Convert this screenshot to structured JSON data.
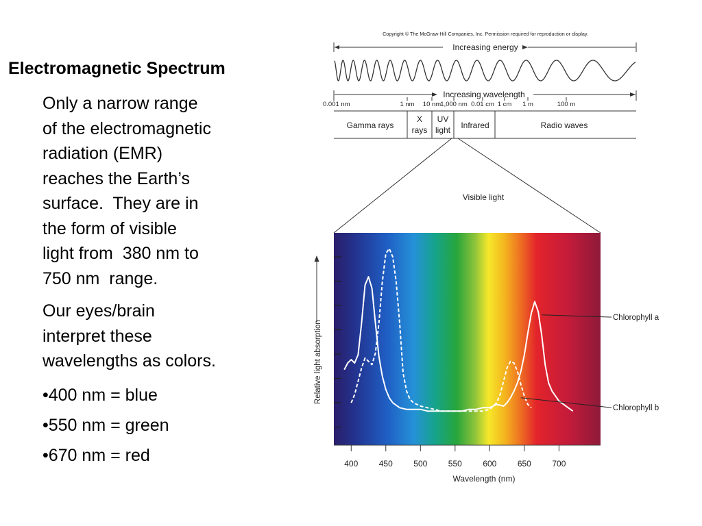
{
  "slide": {
    "title": "Electromagnetic Spectrum",
    "paragraph1_lines": [
      "Only a narrow range",
      "of the electromagnetic",
      "radiation (EMR)",
      "reaches the Earth’s",
      "surface.  They are in",
      "the form of visible",
      "light from  380 nm to",
      "750 nm  range."
    ],
    "paragraph2_lines": [
      "Our eyes/brain",
      "interpret these",
      "wavelengths as colors."
    ],
    "bullets": [
      "•400 nm = blue",
      "•550 nm = green",
      "•670 nm = red"
    ]
  },
  "spectrum_diagram": {
    "copyright": "Copyright © The McGraw-Hill Companies, Inc. Permission required for reproduction or display.",
    "energy_label": "Increasing energy",
    "wavelength_label": "Increasing wavelength",
    "scale_ticks": [
      "0.001 nm",
      "1 nm",
      "10 nm",
      "1,000 nm",
      "0.01 cm",
      "1 cm",
      "1 m",
      "100 m"
    ],
    "regions": [
      {
        "lines": [
          "Gamma rays"
        ]
      },
      {
        "lines": [
          "X",
          "rays"
        ]
      },
      {
        "lines": [
          "UV",
          "light"
        ]
      },
      {
        "lines": [
          "Infrared"
        ]
      },
      {
        "lines": [
          "Radio waves"
        ]
      }
    ],
    "visible_label": "Visible light"
  },
  "chart_data": {
    "type": "line",
    "title": "",
    "xlabel": "Wavelength (nm)",
    "ylabel": "Relative light absorption",
    "x_ticks": [
      400,
      450,
      500,
      550,
      600,
      650,
      700
    ],
    "xlim": [
      375,
      760
    ],
    "ylim": [
      0,
      1
    ],
    "y_tick_count": 8,
    "grid": false,
    "legend": "right-side callout labels",
    "background": "visible spectrum gradient (violet to red)",
    "series": [
      {
        "name": "Chlorophyll a",
        "style": "solid",
        "x": [
          390,
          395,
          400,
          405,
          410,
          415,
          420,
          425,
          430,
          435,
          440,
          445,
          450,
          455,
          460,
          470,
          480,
          490,
          500,
          510,
          520,
          530,
          540,
          550,
          560,
          570,
          580,
          590,
          600,
          610,
          620,
          625,
          630,
          635,
          640,
          645,
          650,
          655,
          660,
          665,
          670,
          675,
          680,
          685,
          690,
          700,
          710,
          720
        ],
        "y": [
          0.27,
          0.31,
          0.33,
          0.31,
          0.36,
          0.55,
          0.78,
          0.83,
          0.76,
          0.55,
          0.35,
          0.23,
          0.15,
          0.1,
          0.07,
          0.04,
          0.03,
          0.03,
          0.03,
          0.02,
          0.02,
          0.02,
          0.02,
          0.02,
          0.02,
          0.03,
          0.03,
          0.04,
          0.04,
          0.06,
          0.05,
          0.07,
          0.1,
          0.14,
          0.19,
          0.26,
          0.36,
          0.49,
          0.61,
          0.68,
          0.62,
          0.48,
          0.3,
          0.19,
          0.14,
          0.08,
          0.05,
          0.02
        ]
      },
      {
        "name": "Chlorophyll b",
        "style": "dashed",
        "x": [
          400,
          405,
          410,
          415,
          420,
          425,
          430,
          435,
          440,
          445,
          450,
          455,
          460,
          465,
          470,
          475,
          480,
          485,
          490,
          500,
          510,
          520,
          530,
          540,
          550,
          560,
          570,
          580,
          590,
          600,
          610,
          615,
          620,
          625,
          630,
          635,
          640,
          645,
          650,
          655,
          660
        ],
        "y": [
          0.07,
          0.12,
          0.2,
          0.28,
          0.34,
          0.32,
          0.3,
          0.37,
          0.55,
          0.8,
          0.97,
          1.0,
          0.95,
          0.8,
          0.55,
          0.25,
          0.14,
          0.09,
          0.07,
          0.05,
          0.04,
          0.03,
          0.02,
          0.02,
          0.02,
          0.02,
          0.02,
          0.02,
          0.02,
          0.03,
          0.07,
          0.12,
          0.2,
          0.28,
          0.32,
          0.31,
          0.26,
          0.18,
          0.11,
          0.06,
          0.04
        ]
      }
    ]
  }
}
